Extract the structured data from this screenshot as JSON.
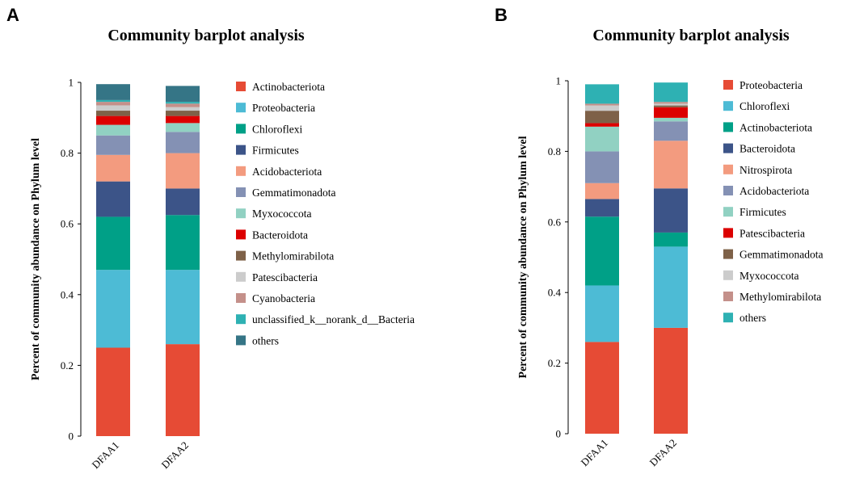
{
  "chart_data": [
    {
      "panel": "A",
      "type": "bar",
      "stacked": true,
      "title": "Community barplot analysis",
      "ylabel": "Percent of community abundance on Phylum level",
      "xlabel": "",
      "ylim": [
        0,
        1
      ],
      "yticks": [
        "0",
        "0.2",
        "0.4",
        "0.6",
        "0.8",
        "1"
      ],
      "categories": [
        "DFAA1",
        "DFAA2"
      ],
      "series": [
        {
          "name": "Actinobacteriota",
          "color": "#E64B35",
          "values": [
            0.25,
            0.26
          ]
        },
        {
          "name": "Proteobacteria",
          "color": "#4DBBD5",
          "values": [
            0.22,
            0.21
          ]
        },
        {
          "name": "Chloroflexi",
          "color": "#00A087",
          "values": [
            0.15,
            0.155
          ]
        },
        {
          "name": "Firmicutes",
          "color": "#3C5488",
          "values": [
            0.1,
            0.075
          ]
        },
        {
          "name": "Acidobacteriota",
          "color": "#F39B7F",
          "values": [
            0.075,
            0.1
          ]
        },
        {
          "name": "Gemmatimonadota",
          "color": "#8491B4",
          "values": [
            0.055,
            0.06
          ]
        },
        {
          "name": "Myxococcota",
          "color": "#91D1C2",
          "values": [
            0.03,
            0.025
          ]
        },
        {
          "name": "Bacteroidota",
          "color": "#DC0000",
          "values": [
            0.025,
            0.02
          ]
        },
        {
          "name": "Methylomirabilota",
          "color": "#7E6148",
          "values": [
            0.015,
            0.015
          ]
        },
        {
          "name": "Patescibacteria",
          "color": "#CCCCCC",
          "values": [
            0.015,
            0.01
          ]
        },
        {
          "name": "Cyanobacteria",
          "color": "#C4908A",
          "values": [
            0.01,
            0.01
          ]
        },
        {
          "name": "unclassified_k__norank_d__Bacteria",
          "color": "#2EB1B3",
          "values": [
            0.005,
            0.005
          ]
        },
        {
          "name": "others",
          "color": "#357586",
          "values": [
            0.045,
            0.045
          ]
        }
      ]
    },
    {
      "panel": "B",
      "type": "bar",
      "stacked": true,
      "title": "Community barplot analysis",
      "ylabel": "Percent of community abundance on Phylum level",
      "xlabel": "",
      "ylim": [
        0,
        1
      ],
      "yticks": [
        "0",
        "0.2",
        "0.4",
        "0.6",
        "0.8",
        "1"
      ],
      "categories": [
        "DFAA1",
        "DFAA2"
      ],
      "series": [
        {
          "name": "Proteobacteria",
          "color": "#E64B35",
          "values": [
            0.26,
            0.3
          ]
        },
        {
          "name": "Chloroflexi",
          "color": "#4DBBD5",
          "values": [
            0.16,
            0.23
          ]
        },
        {
          "name": "Actinobacteriota",
          "color": "#00A087",
          "values": [
            0.195,
            0.04
          ]
        },
        {
          "name": "Bacteroidota",
          "color": "#3C5488",
          "values": [
            0.05,
            0.125
          ]
        },
        {
          "name": "Nitrospirota",
          "color": "#F39B7F",
          "values": [
            0.045,
            0.135
          ]
        },
        {
          "name": "Acidobacteriota",
          "color": "#8491B4",
          "values": [
            0.09,
            0.055
          ]
        },
        {
          "name": "Firmicutes",
          "color": "#91D1C2",
          "values": [
            0.07,
            0.01
          ]
        },
        {
          "name": "Patescibacteria",
          "color": "#DC0000",
          "values": [
            0.01,
            0.03
          ]
        },
        {
          "name": "Gemmatimonadota",
          "color": "#7E6148",
          "values": [
            0.035,
            0.005
          ]
        },
        {
          "name": "Myxococcota",
          "color": "#CCCCCC",
          "values": [
            0.015,
            0.005
          ]
        },
        {
          "name": "Methylomirabilota",
          "color": "#C4908A",
          "values": [
            0.005,
            0.005
          ]
        },
        {
          "name": "others",
          "color": "#2EB1B3",
          "values": [
            0.055,
            0.055
          ]
        }
      ]
    }
  ]
}
